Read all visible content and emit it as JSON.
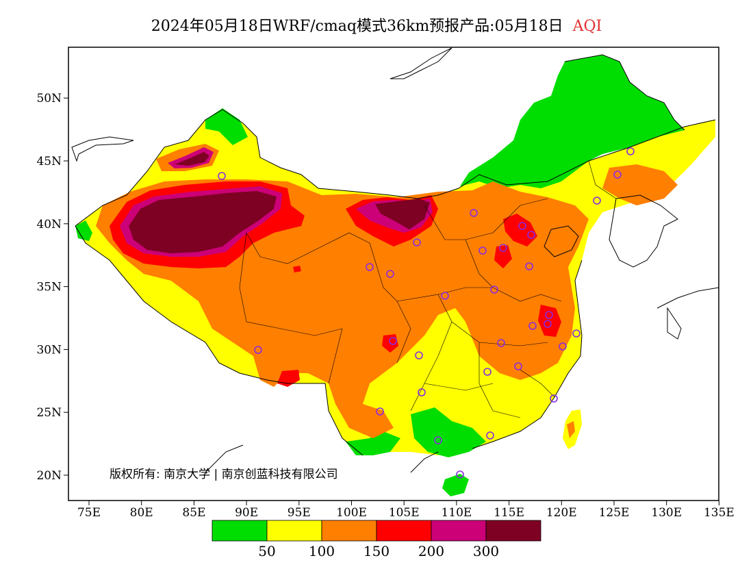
{
  "title": {
    "main": "2024年05月18日WRF/cmaq模式36km预报产品:05月18日",
    "variable": "AQI",
    "variable_color": "#e03030"
  },
  "axes": {
    "lon_ticks": [
      "75E",
      "80E",
      "85E",
      "90E",
      "95E",
      "100E",
      "105E",
      "110E",
      "115E",
      "120E",
      "125E",
      "130E",
      "135E"
    ],
    "lat_ticks": [
      "20N",
      "25N",
      "30N",
      "35N",
      "40N",
      "45N",
      "50N"
    ]
  },
  "copyright": "版权所有: 南京大学 | 南京创蓝科技有限公司",
  "legend": {
    "colors": [
      "#00dd00",
      "#ffff00",
      "#ff7f00",
      "#ff0000",
      "#cc0077",
      "#7e0023"
    ],
    "labels": [
      "50",
      "100",
      "150",
      "200",
      "300"
    ]
  },
  "colors": {
    "good": "#00dd00",
    "moderate": "#ffff00",
    "usg": "#ff7f00",
    "unhealthy": "#ff0000",
    "very_unhealthy": "#cc0077",
    "hazardous": "#7e0023",
    "station_marker": "#8a2be2"
  }
}
